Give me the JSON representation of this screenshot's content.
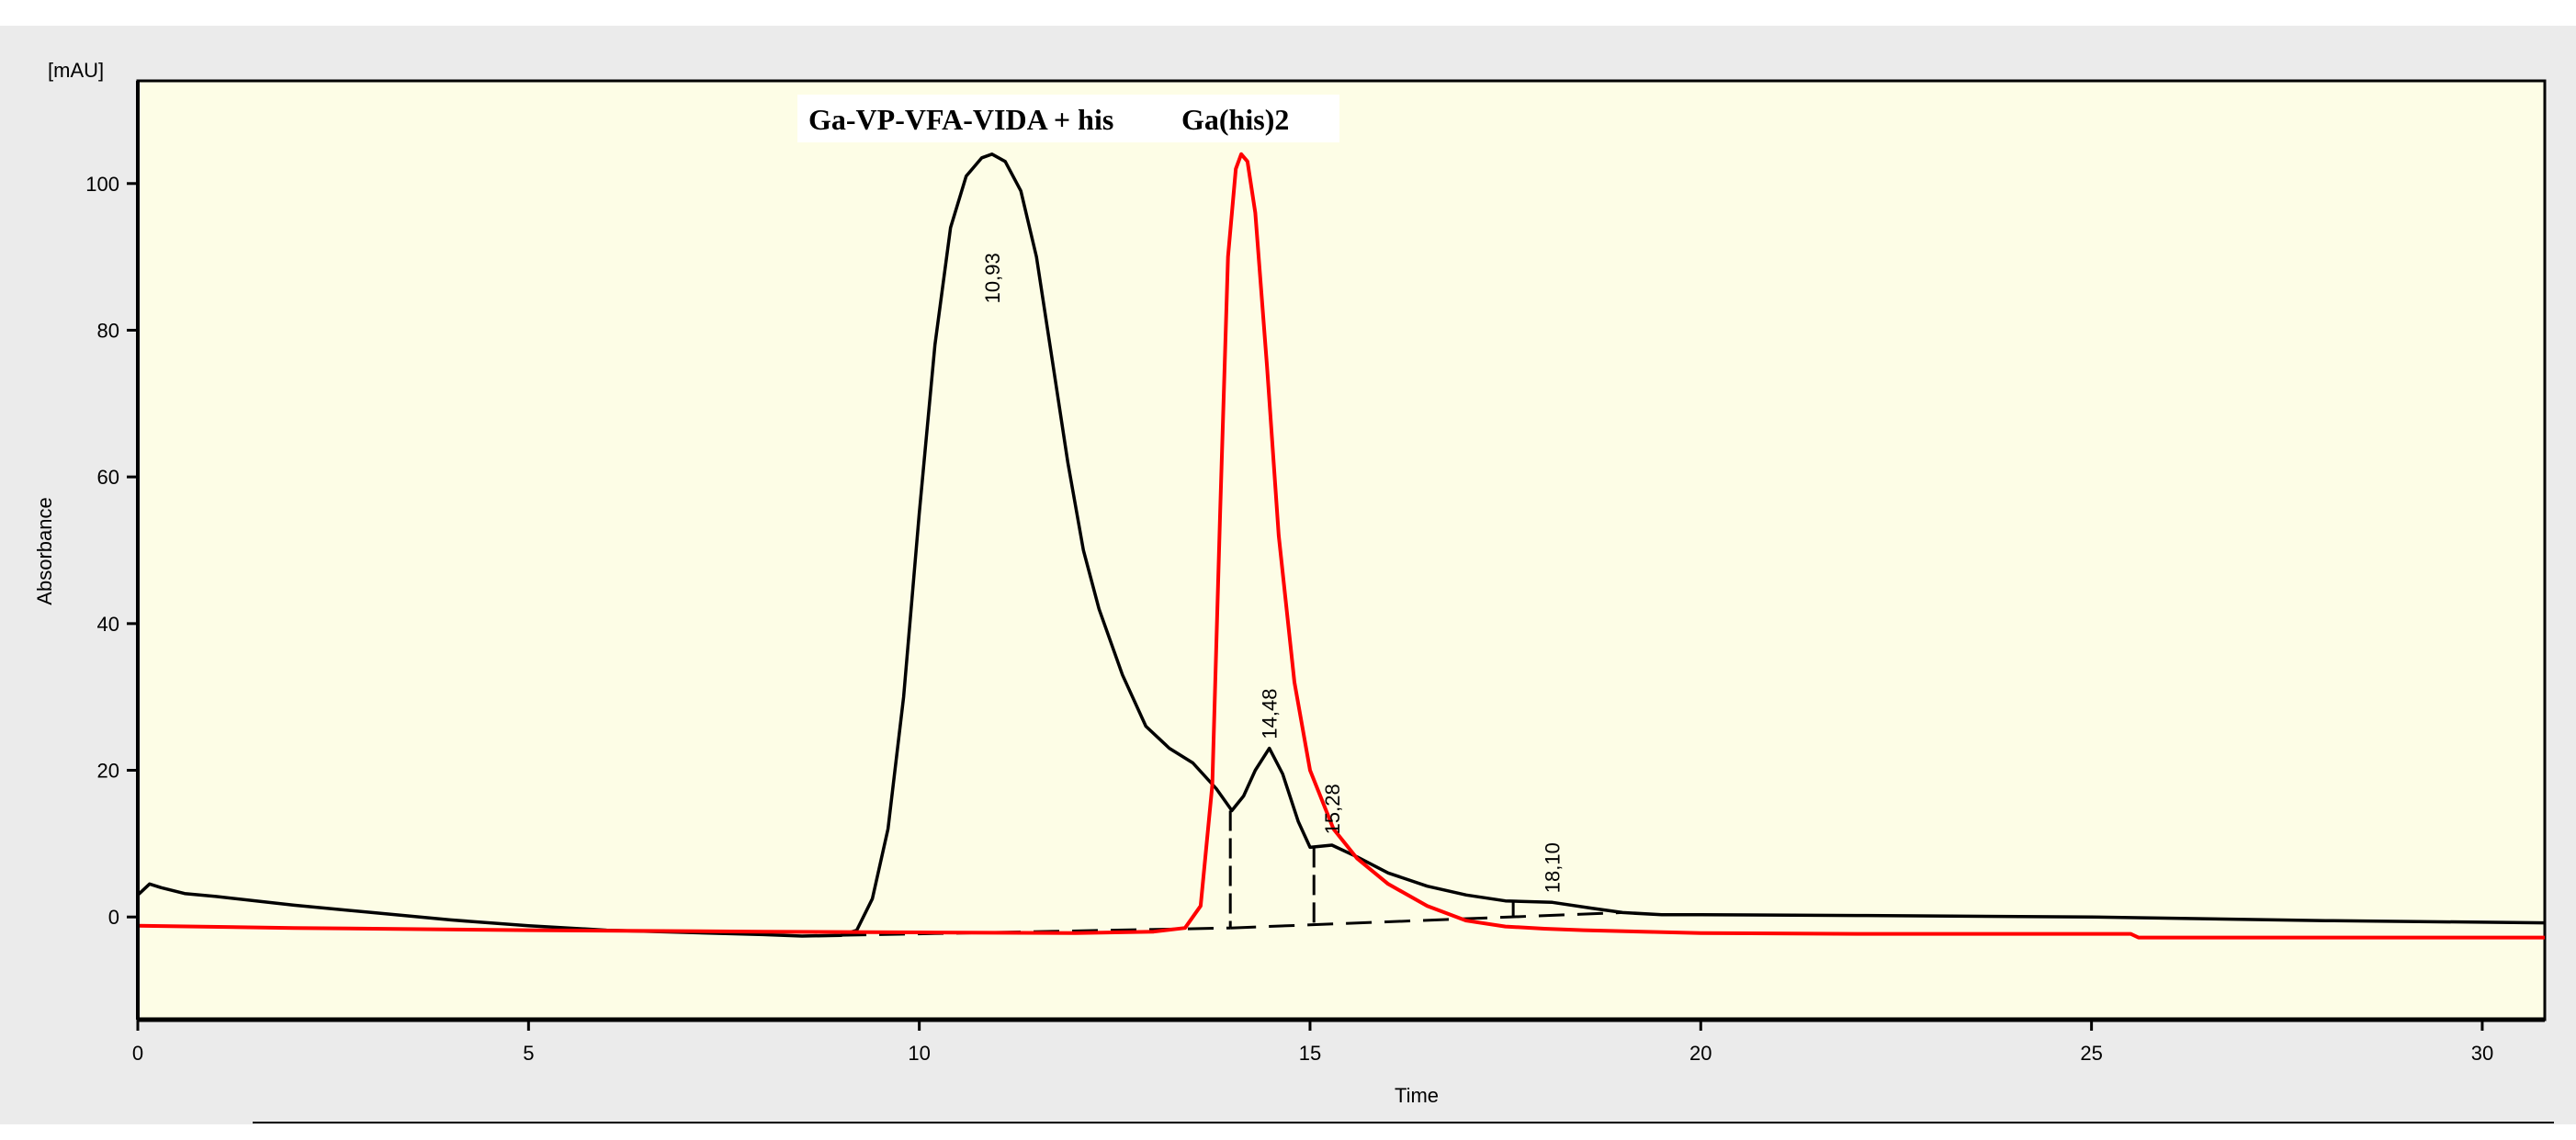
{
  "chart_data": {
    "type": "line",
    "y_unit": "[mAU]",
    "ylabel": "Absorbance",
    "xlabel": "Time",
    "xlim": [
      0,
      30.8
    ],
    "ylim": [
      -14,
      114
    ],
    "x_ticks": [
      0,
      5,
      10,
      15,
      20,
      25,
      30
    ],
    "y_ticks": [
      0,
      20,
      40,
      60,
      80,
      100
    ],
    "grid": false,
    "colors": {
      "plot_bg": "#fdfde6",
      "frame_bg": "#ebebeb",
      "black_trace": "#000000",
      "red_trace": "#ff0000"
    },
    "annotations": [
      {
        "text": "Ga-VP-VFA-VIDA + his",
        "x": 12.0,
        "y": 109
      },
      {
        "text": "Ga(his)2",
        "x": 14.6,
        "y": 109
      }
    ],
    "peak_labels": [
      {
        "text": "10,93",
        "x": 10.93,
        "y": 104
      },
      {
        "text": "14,48",
        "x": 14.48,
        "y": 23
      },
      {
        "text": "15,28",
        "x": 15.28,
        "y": 10
      },
      {
        "text": "18,10",
        "x": 18.1,
        "y": 2
      }
    ],
    "series": [
      {
        "color": "#000000",
        "x": [
          0,
          0.15,
          0.3,
          0.6,
          1,
          2,
          3,
          4,
          5,
          6,
          7,
          8,
          8.5,
          9,
          9.2,
          9.4,
          9.6,
          9.8,
          10,
          10.2,
          10.4,
          10.6,
          10.8,
          10.93,
          11.1,
          11.3,
          11.5,
          11.7,
          11.9,
          12.1,
          12.3,
          12.6,
          12.9,
          13.2,
          13.5,
          13.8,
          14.0,
          14.15,
          14.3,
          14.48,
          14.65,
          14.85,
          15.0,
          15.28,
          15.6,
          16.0,
          16.5,
          17.0,
          17.5,
          18.1,
          18.6,
          19.0,
          19.5,
          20,
          22,
          25,
          28,
          30.8
        ],
        "values": [
          3,
          4.5,
          4.0,
          3.2,
          2.8,
          1.6,
          0.6,
          -0.4,
          -1.2,
          -1.8,
          -2.1,
          -2.4,
          -2.6,
          -2.5,
          -1.8,
          2.5,
          12,
          30,
          55,
          78,
          94,
          101,
          103.5,
          104,
          103,
          99,
          90,
          76,
          62,
          50,
          42,
          33,
          26,
          23,
          21,
          17.5,
          14.5,
          16.5,
          20,
          23,
          19.5,
          13,
          9.5,
          9.8,
          8.2,
          6.0,
          4.2,
          3.0,
          2.2,
          2.0,
          1.2,
          0.6,
          0.3,
          0.3,
          0.2,
          0.0,
          -0.5,
          -0.8
        ]
      },
      {
        "color": "#ff0000",
        "x": [
          0,
          2,
          5,
          8,
          10,
          12,
          13,
          13.4,
          13.6,
          13.75,
          13.85,
          13.95,
          14.05,
          14.12,
          14.2,
          14.3,
          14.45,
          14.6,
          14.8,
          15.0,
          15.3,
          15.6,
          16.0,
          16.5,
          17.0,
          17.5,
          18.0,
          18.5,
          20,
          22,
          25.5,
          25.6,
          28,
          30.8
        ],
        "values": [
          -1.2,
          -1.5,
          -1.8,
          -2.0,
          -2.1,
          -2.2,
          -2.0,
          -1.5,
          1.5,
          18,
          55,
          90,
          102,
          104,
          103,
          96,
          75,
          52,
          32,
          20,
          12,
          8,
          4.5,
          1.5,
          -0.5,
          -1.3,
          -1.6,
          -1.8,
          -2.2,
          -2.3,
          -2.3,
          -2.8,
          -2.8,
          -2.8
        ]
      }
    ],
    "baselines": [
      {
        "x": [
          8.5,
          13.98
        ],
        "values": [
          -2.6,
          -1.5
        ]
      },
      {
        "x": [
          13.98,
          19.0
        ],
        "values": [
          -1.5,
          0.6
        ]
      }
    ],
    "drop_lines": [
      {
        "x": 13.98,
        "from": 14.5,
        "to": -1.5
      },
      {
        "x": 15.05,
        "from": 9.5,
        "to": -1.0
      },
      {
        "x": 17.6,
        "from": 2.3,
        "to": 0.0
      }
    ]
  }
}
